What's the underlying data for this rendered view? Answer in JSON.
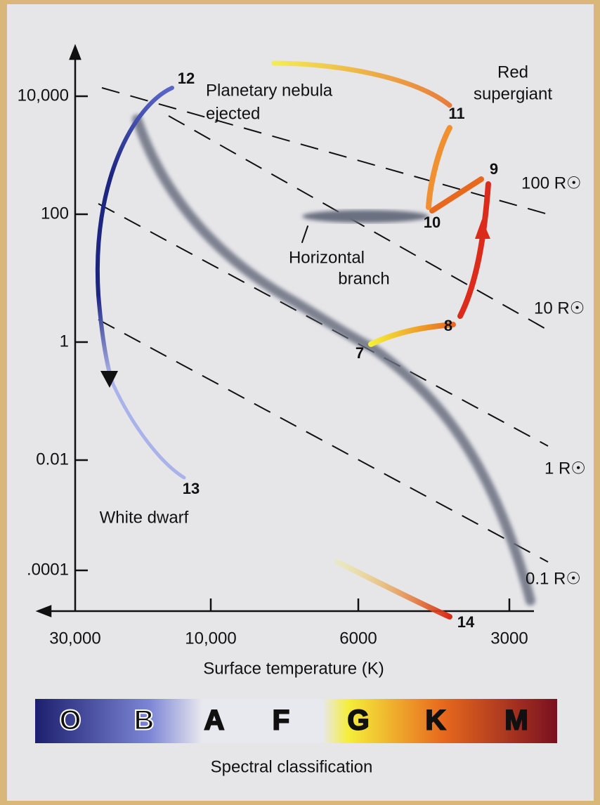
{
  "y_axis": {
    "ticks": [
      "10,000",
      "100",
      "1",
      "0.01",
      ".0001"
    ]
  },
  "x_axis": {
    "ticks": [
      "30,000",
      "10,000",
      "6000",
      "3000"
    ],
    "title": "Surface temperature (K)"
  },
  "stages": [
    "12",
    "11",
    "9",
    "10",
    "8",
    "7",
    "13",
    "14"
  ],
  "annotations": {
    "red_supergiant": [
      "Red",
      "supergiant"
    ],
    "planetary_nebula": [
      "Planetary nebula",
      "ejected"
    ],
    "horizontal_branch": [
      "Horizontal",
      "branch"
    ],
    "white_dwarf": "White dwarf"
  },
  "radius_lines": [
    "100 R☉",
    "10 R☉",
    "1 R☉",
    "0.1 R☉"
  ],
  "spectral": {
    "classes": [
      "O",
      "B",
      "A",
      "F",
      "G",
      "K",
      "M"
    ],
    "title": "Spectral classification"
  }
}
